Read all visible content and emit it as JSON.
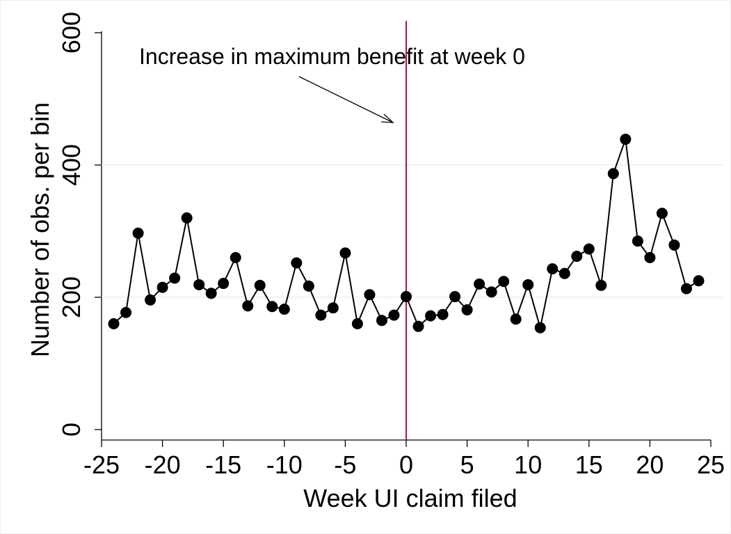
{
  "chart_data": {
    "type": "line",
    "annotation": "Increase in maximum benefit at week 0",
    "xlabel": "Week UI claim filed",
    "ylabel": "Number of obs. per bin",
    "x": [
      -24,
      -23,
      -22,
      -21,
      -20,
      -19,
      -18,
      -17,
      -16,
      -15,
      -14,
      -13,
      -12,
      -11,
      -10,
      -9,
      -8,
      -7,
      -6,
      -5,
      -4,
      -3,
      -2,
      -1,
      0,
      1,
      2,
      3,
      4,
      5,
      6,
      7,
      8,
      9,
      10,
      11,
      12,
      13,
      14,
      15,
      16,
      17,
      18,
      19,
      20,
      21,
      22,
      23,
      24
    ],
    "series": [
      {
        "color": "#000000",
        "values": [
          160,
          177,
          297,
          196,
          215,
          229,
          320,
          219,
          206,
          221,
          260,
          187,
          218,
          186,
          182,
          252,
          217,
          173,
          184,
          267,
          160,
          204,
          165,
          173,
          201,
          156,
          172,
          174,
          201,
          181,
          220,
          208,
          224,
          167,
          219,
          154,
          243,
          236,
          262,
          273,
          218,
          387,
          439,
          285,
          260,
          327,
          279,
          213,
          225
        ]
      }
    ],
    "vline": 0,
    "vline_color": "#b0153a",
    "xlim": [
      -25,
      25
    ],
    "xticks": [
      -25,
      -20,
      -15,
      -10,
      -5,
      0,
      5,
      10,
      15,
      20,
      25
    ],
    "ylim": [
      0,
      600
    ],
    "yticks": [
      0,
      200,
      400,
      600
    ],
    "grid": true,
    "grid_color": "#e3eeea"
  }
}
